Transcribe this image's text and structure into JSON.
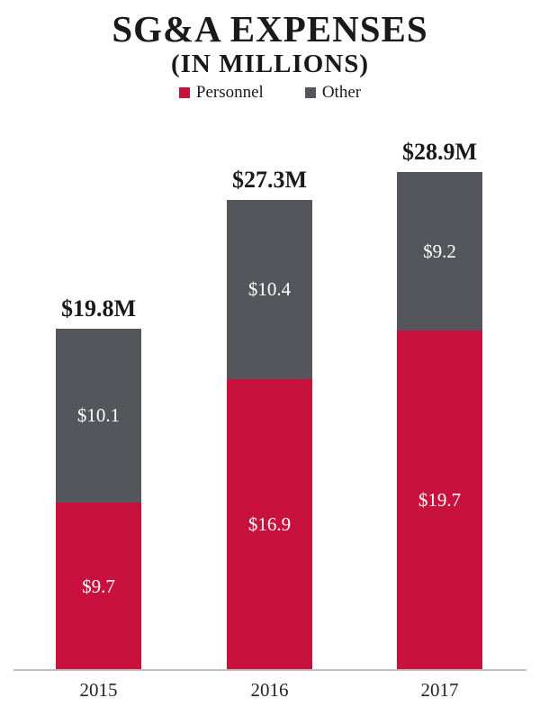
{
  "header": {
    "title": "SG&A EXPENSES",
    "subtitle": "(IN MILLIONS)"
  },
  "legend": {
    "items": [
      {
        "label": "Personnel",
        "color": "#C8113D"
      },
      {
        "label": "Other",
        "color": "#54565B"
      }
    ]
  },
  "chart_data": {
    "type": "bar",
    "stacked": true,
    "title": "SG&A EXPENSES",
    "subtitle": "(IN MILLIONS)",
    "unit": "USD millions",
    "legend_position": "top",
    "grid": false,
    "y_axis_visible": false,
    "categories": [
      "2015",
      "2016",
      "2017"
    ],
    "series": [
      {
        "name": "Personnel",
        "color": "#C8113D",
        "values": [
          9.7,
          16.9,
          19.7
        ]
      },
      {
        "name": "Other",
        "color": "#54565B",
        "values": [
          10.1,
          10.4,
          9.2
        ]
      }
    ],
    "totals": [
      19.8,
      27.3,
      28.9
    ],
    "bars": [
      {
        "category": "2015",
        "personnel": 9.7,
        "other": 10.1,
        "total": 19.8,
        "personnel_label": "$9.7",
        "other_label": "$10.1",
        "total_label": "$19.8M"
      },
      {
        "category": "2016",
        "personnel": 16.9,
        "other": 10.4,
        "total": 27.3,
        "personnel_label": "$16.9",
        "other_label": "$10.4",
        "total_label": "$27.3M"
      },
      {
        "category": "2017",
        "personnel": 19.7,
        "other": 9.2,
        "total": 28.9,
        "personnel_label": "$19.7",
        "other_label": "$9.2",
        "total_label": "$28.9M"
      }
    ]
  }
}
